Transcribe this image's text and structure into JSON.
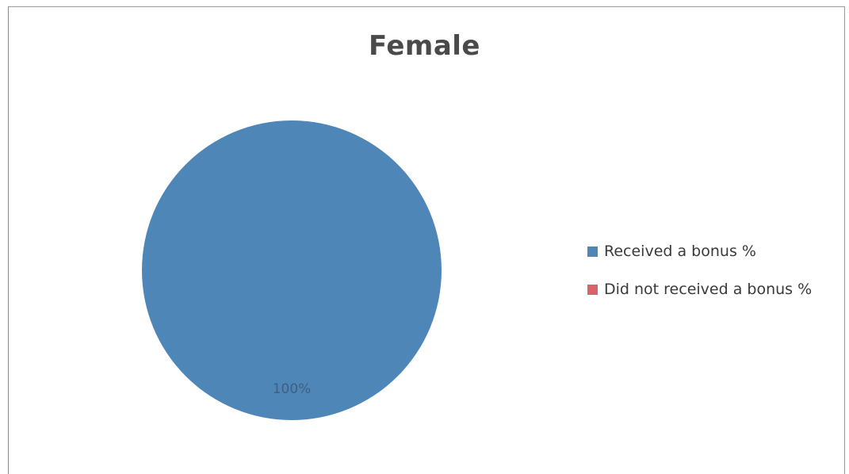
{
  "chart_data": {
    "type": "pie",
    "title": "Female",
    "categories": [
      "Received a bonus %",
      "Did not received a bonus %"
    ],
    "values": [
      100,
      0
    ],
    "data_labels": [
      "100%",
      ""
    ],
    "colors": [
      "#4f86b8",
      "#d9636b"
    ],
    "legend_position": "right"
  }
}
